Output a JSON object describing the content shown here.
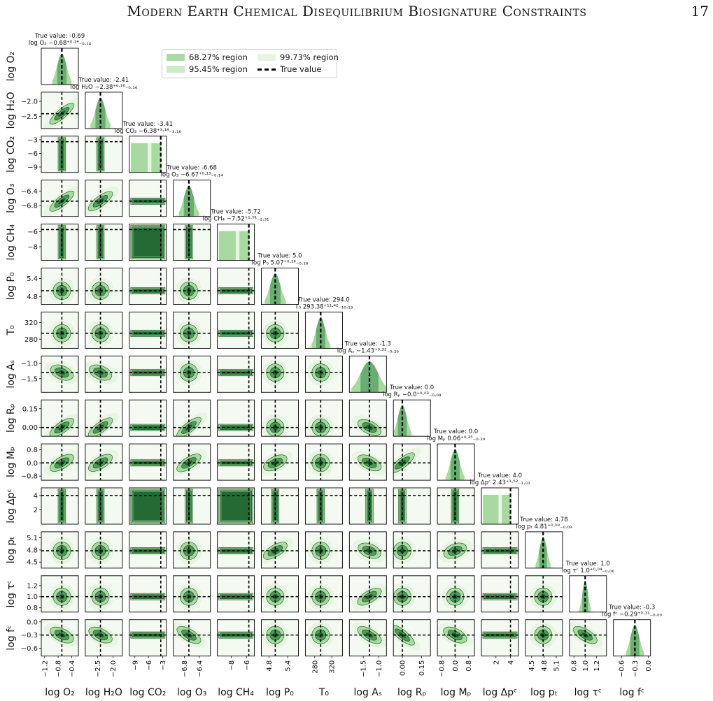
{
  "header": {
    "title": "Modern Earth Chemical Disequilibrium Biosignature Constraints",
    "page_number": "17"
  },
  "legend": {
    "items": [
      {
        "label": "68.27% region",
        "color": "#a8d9a0"
      },
      {
        "label": "99.73% region",
        "color": "#e8f5e3"
      },
      {
        "label": "95.45% region",
        "color": "#cdebc6"
      },
      {
        "label": "True value",
        "style": "dashed",
        "color": "#000000"
      }
    ]
  },
  "chart_data": {
    "type": "corner",
    "colors": {
      "dark": "#1a5e2c",
      "mid": "#4f9a5b",
      "light": "#a8d9a0",
      "pale": "#e8f5e3"
    },
    "parameters": [
      {
        "label": "log O₂",
        "true_text": "True value: -0.69",
        "est_text": "log O₂ −0.68⁺⁰·¹⁴₋₀.₁₄",
        "truth": -0.69,
        "range": [
          -1.3,
          -0.2
        ],
        "ticks": [
          -1.2,
          -0.8,
          -0.4
        ],
        "tick_labels": [
          "−1.2",
          "−0.8",
          "−0.4"
        ],
        "sigma": 0.14,
        "flat": false
      },
      {
        "label": "log H₂O",
        "true_text": "True value: -2.41",
        "est_text": "log H₂O −2.38⁺⁰·¹⁶₋₀.₁₆",
        "truth": -2.41,
        "range": [
          -2.9,
          -1.7
        ],
        "ticks": [
          -2.5,
          -2.0
        ],
        "tick_labels": [
          "−2.5",
          "−2.0"
        ],
        "sigma": 0.16,
        "flat": false
      },
      {
        "label": "log CO₂",
        "true_text": "True value: -3.41",
        "est_text": "log CO₂ −6.38⁺³·¹⁸₋₃.₁₆",
        "truth": -3.41,
        "range": [
          -10.2,
          -2.2
        ],
        "ticks": [
          -9,
          -6,
          -3
        ],
        "tick_labels": [
          "−9",
          "−6",
          "−3"
        ],
        "sigma": 3.17,
        "flat": true
      },
      {
        "label": "log O₃",
        "true_text": "True value: -6.68",
        "est_text": "log O₃ −6.67⁺⁰·¹³₋₀.₁₄",
        "truth": -6.68,
        "range": [
          -7.1,
          -6.1
        ],
        "ticks": [
          -6.8,
          -6.4
        ],
        "tick_labels": [
          "−6.8",
          "−6.4"
        ],
        "sigma": 0.135,
        "flat": false
      },
      {
        "label": "log CH₄",
        "true_text": "True value: -5.72",
        "est_text": "log CH₄ −7.52⁺¹·⁹¹₋₂.₃₁",
        "truth": -5.72,
        "range": [
          -9.8,
          -5.0
        ],
        "ticks": [
          -8,
          -6
        ],
        "tick_labels": [
          "−8",
          "−6"
        ],
        "sigma": 2.1,
        "flat": true
      },
      {
        "label": "log P₀",
        "true_text": "True value: 5.0",
        "est_text": "log P₀ 5.07⁺⁰·¹⁶₋₀.₁₈",
        "truth": 5.0,
        "range": [
          4.55,
          5.75
        ],
        "ticks": [
          4.8,
          5.4
        ],
        "tick_labels": [
          "4.8",
          "5.4"
        ],
        "sigma": 0.17,
        "flat": false
      },
      {
        "label": "T₀",
        "true_text": "True value: 294.0",
        "est_text": "T₀ 293.38⁺¹¹·⁴²₋₁₀.₁₃",
        "truth": 294.0,
        "range": [
          258,
          345
        ],
        "ticks": [
          280,
          320
        ],
        "tick_labels": [
          "280",
          "320"
        ],
        "sigma": 10.8,
        "flat": false
      },
      {
        "label": "log Aₛ",
        "true_text": "True value: -1.3",
        "est_text": "log Aₛ −1.43⁺⁰·³²₋₀.₂₆",
        "truth": -1.3,
        "range": [
          -1.95,
          -0.75
        ],
        "ticks": [
          -1.5,
          -1.0
        ],
        "tick_labels": [
          "−1.5",
          "−1.0"
        ],
        "sigma": 0.29,
        "flat": false
      },
      {
        "label": "log Rₚ",
        "true_text": "True value: 0.0",
        "est_text": "log Rₚ −0.0⁺⁰·⁰³₋₀.₀₄",
        "truth": 0.0,
        "range": [
          -0.07,
          0.22
        ],
        "ticks": [
          0.0,
          0.15
        ],
        "tick_labels": [
          "0.00",
          "0.15"
        ],
        "sigma": 0.035,
        "flat": false
      },
      {
        "label": "log Mₚ",
        "true_text": "True value: 0.0",
        "est_text": "log Mₚ 0.06⁺⁰·²⁵₋₀.₂₉",
        "truth": 0.0,
        "range": [
          -1.05,
          1.15
        ],
        "ticks": [
          -0.8,
          0.0,
          0.8
        ],
        "tick_labels": [
          "−0.8",
          "0.0",
          "0.8"
        ],
        "sigma": 0.27,
        "flat": false
      },
      {
        "label": "log Δpᶜ",
        "true_text": "True value: 4.0",
        "est_text": "log Δpᶜ 2.43⁺¹·⁵²₋₁.₀₁",
        "truth": 4.0,
        "range": [
          0.0,
          5.1
        ],
        "ticks": [
          2,
          4
        ],
        "tick_labels": [
          "2",
          "4"
        ],
        "sigma": 1.3,
        "flat": true
      },
      {
        "label": "log pₜ",
        "true_text": "True value: 4.78",
        "est_text": "log pₜ 4.81⁺⁰·⁰⁹₋₀.₀₉",
        "truth": 4.78,
        "range": [
          4.35,
          5.25
        ],
        "ticks": [
          4.5,
          4.8,
          5.1
        ],
        "tick_labels": [
          "4.5",
          "4.8",
          "5.1"
        ],
        "sigma": 0.09,
        "flat": false
      },
      {
        "label": "log τᶜ",
        "true_text": "True value: 1.0",
        "est_text": "log τᶜ 1.0⁺⁰·⁰⁴₋₀.₀₆",
        "truth": 1.0,
        "range": [
          0.72,
          1.38
        ],
        "ticks": [
          0.8,
          1.0,
          1.2
        ],
        "tick_labels": [
          "0.8",
          "1.0",
          "1.2"
        ],
        "sigma": 0.05,
        "flat": false
      },
      {
        "label": "log fᶜ",
        "true_text": "True value: -0.3",
        "est_text": "log fᶜ −0.29⁺⁰·¹¹₋₀.₀₉",
        "truth": -0.3,
        "range": [
          -0.78,
          0.05
        ],
        "ticks": [
          -0.6,
          -0.3,
          0.0
        ],
        "tick_labels": [
          "−0.6",
          "−0.3",
          "0.0"
        ],
        "sigma": 0.1,
        "flat": false
      }
    ],
    "correlations": [
      {
        "row": 1,
        "col": 0,
        "rho": 0.85
      },
      {
        "row": 3,
        "col": 0,
        "rho": 0.8
      },
      {
        "row": 3,
        "col": 1,
        "rho": 0.75
      },
      {
        "row": 7,
        "col": 0,
        "rho": -0.4
      },
      {
        "row": 7,
        "col": 1,
        "rho": -0.4
      },
      {
        "row": 8,
        "col": 0,
        "rho": 0.7
      },
      {
        "row": 8,
        "col": 1,
        "rho": 0.75
      },
      {
        "row": 8,
        "col": 3,
        "rho": 0.8
      },
      {
        "row": 8,
        "col": 7,
        "rho": -0.5
      },
      {
        "row": 9,
        "col": 0,
        "rho": 0.6
      },
      {
        "row": 9,
        "col": 1,
        "rho": 0.6
      },
      {
        "row": 9,
        "col": 3,
        "rho": 0.65
      },
      {
        "row": 9,
        "col": 5,
        "rho": 0.5
      },
      {
        "row": 9,
        "col": 7,
        "rho": -0.5
      },
      {
        "row": 9,
        "col": 8,
        "rho": 0.8
      },
      {
        "row": 11,
        "col": 5,
        "rho": 0.6
      },
      {
        "row": 11,
        "col": 7,
        "rho": -0.4
      },
      {
        "row": 11,
        "col": 9,
        "rho": 0.4
      },
      {
        "row": 12,
        "col": 7,
        "rho": 0.6
      },
      {
        "row": 13,
        "col": 0,
        "rho": -0.5
      },
      {
        "row": 13,
        "col": 1,
        "rho": -0.5
      },
      {
        "row": 13,
        "col": 3,
        "rho": -0.6
      },
      {
        "row": 13,
        "col": 7,
        "rho": -0.6
      },
      {
        "row": 13,
        "col": 8,
        "rho": -0.8
      },
      {
        "row": 13,
        "col": 9,
        "rho": -0.5
      },
      {
        "row": 13,
        "col": 12,
        "rho": -0.6
      }
    ]
  }
}
